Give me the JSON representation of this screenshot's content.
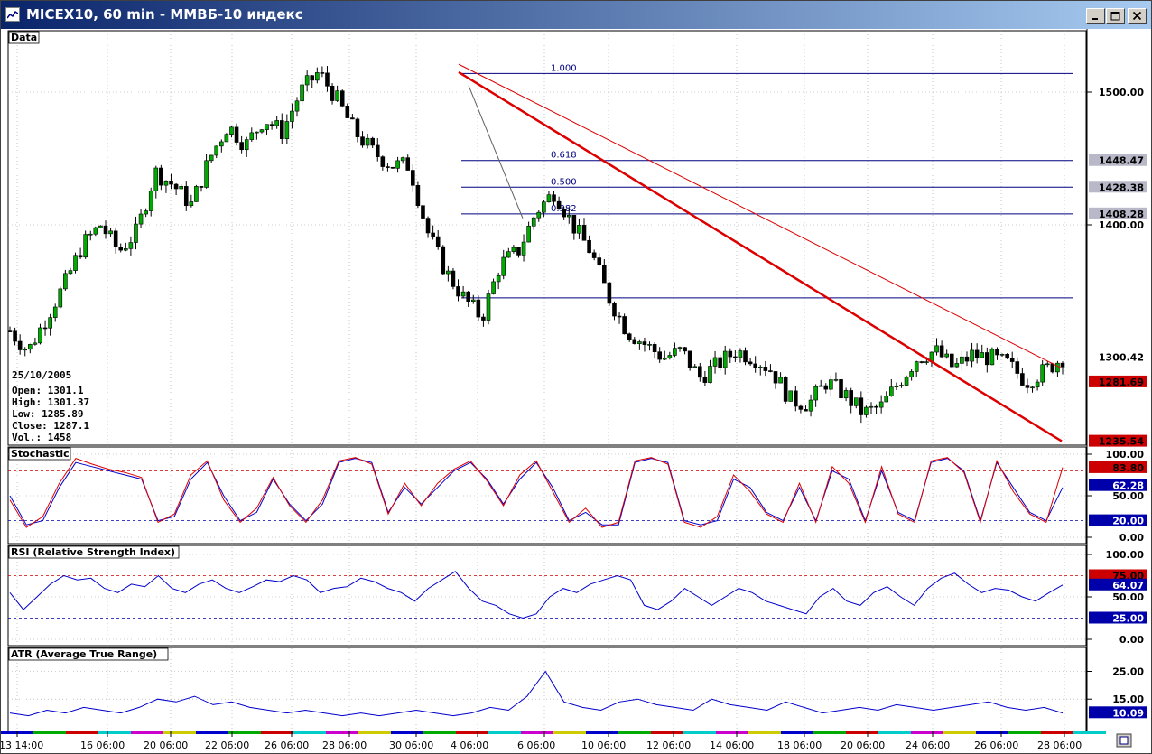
{
  "window": {
    "title": "MICEX10, 60 min - ММВБ-10 индекс",
    "minimize_icon": "minimize-icon",
    "maximize_icon": "maximize-icon",
    "close_icon": "close-icon"
  },
  "chart_data": [
    {
      "type": "candlestick",
      "panel": "price",
      "title": "Data",
      "ylim": [
        1237,
        1531
      ],
      "y_ticks": [
        "1500.00",
        "1400.00"
      ],
      "x_ticks": [
        "13 14:00",
        "16 06:00",
        "20 06:00",
        "22 06:00",
        "26 06:00",
        "28 06:00",
        "30 06:00",
        "4 06:00",
        "6 06:00",
        "10 06:00",
        "12 06:00",
        "14 06:00",
        "18 06:00",
        "20 06:00",
        "24 06:00",
        "26 06:00",
        "28 06:00"
      ],
      "close_path": [
        1320,
        1305,
        1330,
        1355,
        1385,
        1400,
        1380,
        1395,
        1440,
        1430,
        1415,
        1450,
        1475,
        1460,
        1480,
        1470,
        1500,
        1515,
        1495,
        1470,
        1455,
        1445,
        1445,
        1395,
        1365,
        1345,
        1330,
        1370,
        1380,
        1410,
        1425,
        1400,
        1380,
        1345,
        1320,
        1310,
        1300,
        1305,
        1285,
        1295,
        1305,
        1300,
        1290,
        1268,
        1265,
        1282,
        1272,
        1258,
        1263,
        1282,
        1300,
        1305,
        1292,
        1302,
        1300,
        1295,
        1282,
        1290,
        1300
      ],
      "last_date": "25/10/2005",
      "ohlcv": {
        "open": "Open: 1301.1",
        "high": "High: 1301.37",
        "low": "Low: 1285.89",
        "close": "Close: 1287.1",
        "vol": "Vol.: 1458"
      },
      "fib_levels": [
        {
          "label": "1.000",
          "value": 1514
        },
        {
          "label": "0.618",
          "value": 1448.47
        },
        {
          "label": "0.500",
          "value": 1428.38
        },
        {
          "label": "0.382",
          "value": 1408.28
        },
        {
          "label": "",
          "value": 1345
        }
      ],
      "price_badges": [
        {
          "label": "1448.47",
          "value": 1448.47,
          "bg": "#b8b8c8",
          "fg": "#000000"
        },
        {
          "label": "1428.38",
          "value": 1428.38,
          "bg": "#b8b8c8",
          "fg": "#000000"
        },
        {
          "label": "1408.28",
          "value": 1408.28,
          "bg": "#b8b8c8",
          "fg": "#000000"
        },
        {
          "label": "1300.42",
          "value": 1300.42,
          "bg": "#ffffff",
          "fg": "#000000"
        },
        {
          "label": "1281.69",
          "value": 1281.69,
          "bg": "#cc0000",
          "fg": "#000000"
        },
        {
          "label": "1235.54",
          "value": 1235.54,
          "bg": "#cc0000",
          "fg": "#000000"
        }
      ],
      "trendlines": [
        {
          "from": [
            507,
            1515
          ],
          "to": [
            1175,
            1237
          ],
          "color": "#dd0000",
          "width": 2.5
        },
        {
          "from": [
            507,
            1521
          ],
          "to": [
            1175,
            1292
          ],
          "color": "#dd0000",
          "width": 1
        },
        {
          "from": [
            518,
            1505
          ],
          "to": [
            578,
            1405
          ],
          "color": "#606060",
          "width": 1
        }
      ]
    },
    {
      "type": "line",
      "panel": "stochastic",
      "title": "Stochastic",
      "ylim": [
        0,
        100
      ],
      "y_ticks": [
        "100.00",
        "50.00",
        "0.00"
      ],
      "levels": [
        80,
        20
      ],
      "level_badges": [
        {
          "label": "83.80",
          "value": 83.8,
          "bg": "#cc0000",
          "fg": "#000000"
        },
        {
          "label": "62.28",
          "value": 62.28,
          "bg": "#0000aa",
          "fg": "#ffffff"
        },
        {
          "label": "20.00",
          "value": 20,
          "bg": "#0000aa",
          "fg": "#ffffff"
        }
      ],
      "series": [
        {
          "color": "#0000cc",
          "values": [
            50,
            15,
            20,
            60,
            90,
            85,
            80,
            75,
            70,
            20,
            25,
            70,
            90,
            50,
            20,
            30,
            70,
            40,
            20,
            40,
            90,
            95,
            90,
            30,
            60,
            40,
            60,
            80,
            90,
            70,
            40,
            70,
            90,
            60,
            20,
            30,
            15,
            15,
            90,
            95,
            90,
            20,
            15,
            20,
            70,
            60,
            30,
            20,
            60,
            20,
            80,
            70,
            20,
            80,
            30,
            20,
            90,
            95,
            80,
            20,
            90,
            60,
            30,
            20,
            60
          ]
        },
        {
          "color": "#dd0000",
          "values": [
            45,
            12,
            25,
            65,
            95,
            88,
            82,
            78,
            72,
            18,
            28,
            75,
            92,
            45,
            18,
            35,
            72,
            38,
            18,
            45,
            92,
            96,
            88,
            28,
            65,
            38,
            65,
            82,
            92,
            68,
            38,
            75,
            92,
            55,
            18,
            35,
            12,
            18,
            92,
            96,
            88,
            18,
            12,
            25,
            75,
            55,
            28,
            18,
            65,
            18,
            85,
            65,
            18,
            85,
            28,
            18,
            92,
            96,
            78,
            18,
            92,
            55,
            28,
            18,
            84
          ]
        }
      ]
    },
    {
      "type": "line",
      "panel": "rsi",
      "title": "RSI (Relative Strength Index)",
      "ylim": [
        0,
        100
      ],
      "y_ticks": [
        "100.00",
        "50.00",
        "0.00"
      ],
      "levels": [
        75,
        25
      ],
      "level_badges": [
        {
          "label": "75.00",
          "value": 75,
          "bg": "#cc0000",
          "fg": "#000000"
        },
        {
          "label": "64.07",
          "value": 64.07,
          "bg": "#0000aa",
          "fg": "#ffffff"
        },
        {
          "label": "25.00",
          "value": 25,
          "bg": "#0000aa",
          "fg": "#ffffff"
        }
      ],
      "series": [
        {
          "color": "#0000cc",
          "values": [
            55,
            35,
            50,
            65,
            75,
            70,
            72,
            60,
            55,
            65,
            62,
            75,
            60,
            55,
            65,
            70,
            60,
            55,
            62,
            70,
            68,
            75,
            70,
            55,
            60,
            62,
            72,
            68,
            60,
            55,
            45,
            60,
            70,
            80,
            60,
            45,
            40,
            30,
            25,
            30,
            50,
            60,
            55,
            65,
            70,
            75,
            70,
            40,
            35,
            45,
            60,
            50,
            40,
            50,
            60,
            55,
            45,
            40,
            35,
            30,
            50,
            60,
            45,
            40,
            55,
            62,
            50,
            40,
            60,
            72,
            78,
            65,
            55,
            60,
            58,
            50,
            45,
            55,
            64
          ]
        }
      ]
    },
    {
      "type": "line",
      "panel": "atr",
      "title": "ATR (Average True Range)",
      "ylim": [
        4,
        32
      ],
      "y_ticks": [
        "25.00",
        "15.00"
      ],
      "level_badges": [
        {
          "label": "10.09",
          "value": 10.09,
          "bg": "#0000aa",
          "fg": "#ffffff"
        }
      ],
      "series": [
        {
          "color": "#0000cc",
          "values": [
            10,
            9,
            11,
            10,
            12,
            11,
            10,
            12,
            15,
            14,
            16,
            13,
            14,
            12,
            11,
            10,
            11,
            10,
            9,
            10,
            9,
            10,
            11,
            10,
            9,
            10,
            12,
            11,
            16,
            25,
            14,
            12,
            11,
            14,
            15,
            13,
            12,
            11,
            15,
            13,
            12,
            11,
            14,
            12,
            10,
            11,
            12,
            11,
            13,
            12,
            11,
            12,
            13,
            14,
            12,
            11,
            12,
            10
          ]
        }
      ]
    }
  ]
}
